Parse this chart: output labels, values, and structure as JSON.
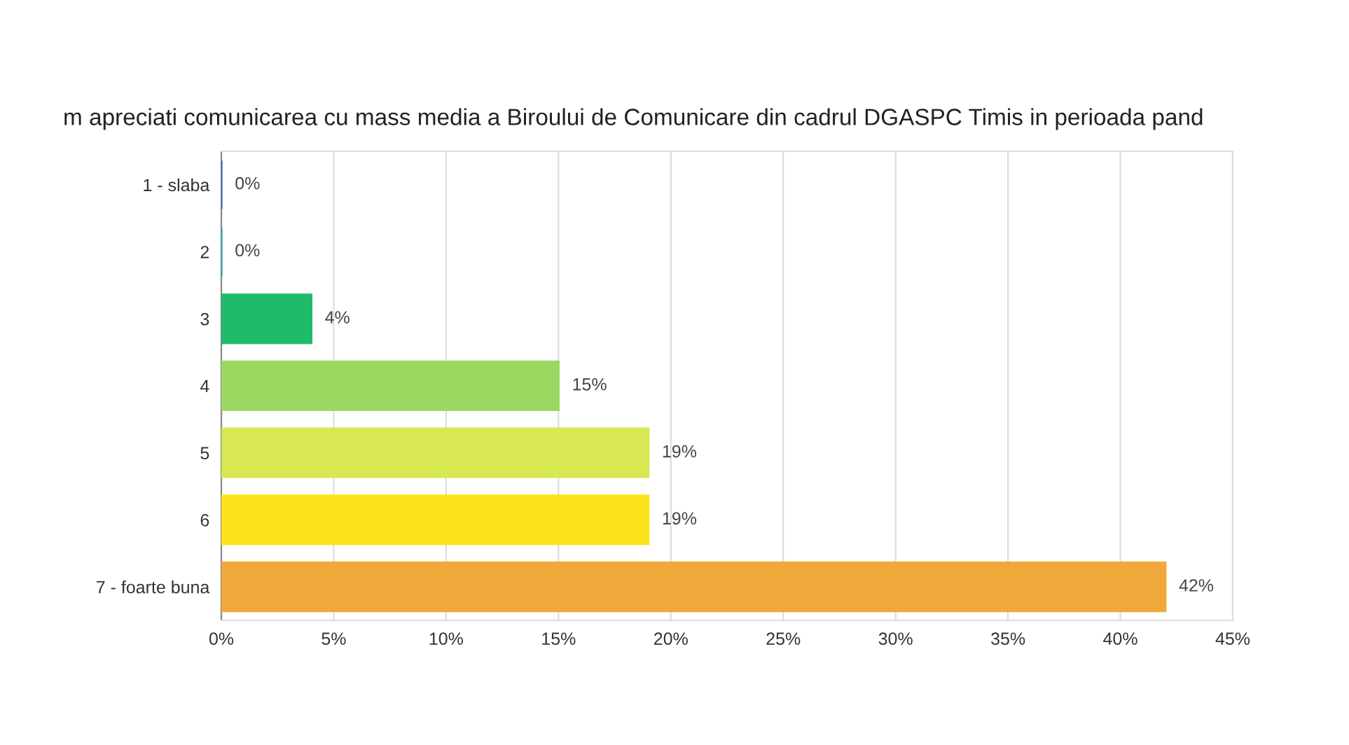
{
  "chart_data": {
    "type": "bar",
    "orientation": "horizontal",
    "title": "m apreciati comunicarea cu mass media a Biroului de Comunicare din cadrul DGASPC Timis in perioada pand",
    "categories": [
      "1 - slaba",
      "2",
      "3",
      "4",
      "5",
      "6",
      "7 - foarte buna"
    ],
    "values": [
      0,
      0,
      4,
      15,
      19,
      19,
      42
    ],
    "colors": [
      "#3366cc",
      "#22aabb",
      "#1fbb6b",
      "#9bd862",
      "#d8e852",
      "#fde31c",
      "#f0a83a"
    ],
    "value_labels": [
      "0%",
      "0%",
      "4%",
      "15%",
      "19%",
      "19%",
      "42%"
    ],
    "xlim": [
      0,
      45
    ],
    "xticks": [
      {
        "value": 0,
        "label": "0%"
      },
      {
        "value": 5,
        "label": "5%"
      },
      {
        "value": 10,
        "label": "10%"
      },
      {
        "value": 15,
        "label": "15%"
      },
      {
        "value": 20,
        "label": "20%"
      },
      {
        "value": 25,
        "label": "25%"
      },
      {
        "value": 30,
        "label": "30%"
      },
      {
        "value": 35,
        "label": "35%"
      },
      {
        "value": 40,
        "label": "40%"
      },
      {
        "value": 45,
        "label": "45%"
      }
    ],
    "grid": "x"
  }
}
